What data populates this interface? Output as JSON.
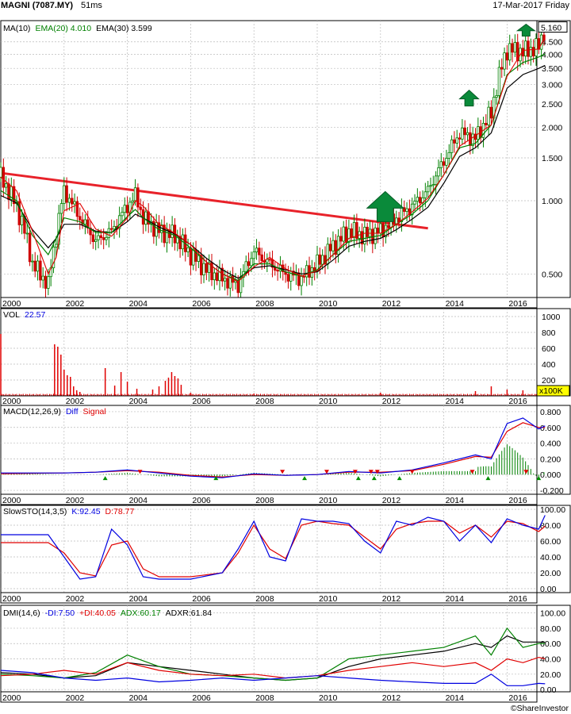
{
  "header": {
    "symbol": "MAGNI (7087.MY)",
    "timing": "51ms",
    "date": "17-Mar-2017 Friday"
  },
  "colors": {
    "ma10": "#e00000",
    "ema20": "#008000",
    "ema30": "#000000",
    "trendline": "#e8222a",
    "candle_up": "#008000",
    "candle_down": "#d00000",
    "arrow": "#0a8a3a",
    "volume": "#e00000",
    "diff": "#0000e0",
    "signal": "#e00000",
    "stoch_k": "#0000e0",
    "stoch_d": "#e00000",
    "minus_di": "#0000e0",
    "plus_di": "#e00000",
    "adx": "#008000",
    "adxr": "#000000"
  },
  "panels": {
    "price": {
      "legend": [
        {
          "label": "MA(10)",
          "value": "",
          "color": "#000"
        },
        {
          "label": "EMA(20)",
          "value": "4.010",
          "color": "#008000"
        },
        {
          "label": "EMA(30)",
          "value": "3.599",
          "color": "#000"
        }
      ],
      "last_price": "5.160",
      "yticks": [
        "4.500",
        "4.000",
        "3.500",
        "3.000",
        "2.500",
        "2.000",
        "1.500",
        "1.000",
        "0.500"
      ]
    },
    "volume": {
      "title": "VOL",
      "value": "22.57",
      "yticks": [
        "1000",
        "800",
        "600",
        "400",
        "200"
      ],
      "unit": "x100K"
    },
    "macd": {
      "title": "MACD(12,26,9)",
      "diff_label": "Diff",
      "signal_label": "Signal",
      "yticks": [
        "0.800",
        "0.600",
        "0.400",
        "0.200",
        "0.000",
        "-0.200"
      ]
    },
    "stoch": {
      "title": "SlowSTO(14,3,5)",
      "k": "K:92.45",
      "d": "D:78.77",
      "yticks": [
        "100.00",
        "80.00",
        "60.00",
        "40.00",
        "20.00",
        "0.00"
      ]
    },
    "dmi": {
      "title": "DMI(14,6)",
      "minus_di": "-DI:7.50",
      "plus_di": "+DI:40.05",
      "adx": "ADX:60.17",
      "adxr": "ADXR:61.84",
      "yticks": [
        "100.00",
        "80.00",
        "60.00",
        "40.00",
        "20.00",
        "0.00"
      ]
    }
  },
  "x_labels": [
    "2000",
    "2002",
    "2004",
    "2006",
    "2008",
    "2010",
    "2012",
    "2014",
    "2016"
  ],
  "footer": "©ShareInvestor",
  "chart_data": [
    {
      "type": "line",
      "title": "MAGNI (7087.MY)",
      "scale": "log",
      "x": [
        2000.0,
        2000.5,
        2001.0,
        2001.5,
        2001.75,
        2002.0,
        2002.5,
        2003.0,
        2003.5,
        2004.0,
        2004.25,
        2004.5,
        2005.0,
        2005.5,
        2006.0,
        2006.5,
        2007.0,
        2007.5,
        2008.0,
        2008.5,
        2009.0,
        2009.5,
        2010.0,
        2010.5,
        2011.0,
        2011.5,
        2012.0,
        2012.5,
        2013.0,
        2013.5,
        2014.0,
        2014.5,
        2015.0,
        2015.5,
        2016.0,
        2016.5,
        2017.0,
        2017.2
      ],
      "series": [
        {
          "name": "Close",
          "values": [
            1.25,
            0.95,
            0.55,
            0.45,
            0.72,
            1.1,
            0.85,
            0.68,
            0.75,
            0.95,
            1.05,
            0.85,
            0.75,
            0.72,
            0.6,
            0.52,
            0.48,
            0.45,
            0.62,
            0.55,
            0.5,
            0.48,
            0.55,
            0.65,
            0.75,
            0.72,
            0.75,
            0.85,
            0.95,
            1.1,
            1.45,
            1.9,
            1.8,
            2.3,
            4.2,
            4.1,
            4.3,
            5.16
          ]
        },
        {
          "name": "EMA(20)",
          "values": [
            1.1,
            1.0,
            0.72,
            0.6,
            0.7,
            0.85,
            0.82,
            0.74,
            0.74,
            0.86,
            0.92,
            0.85,
            0.76,
            0.72,
            0.64,
            0.56,
            0.5,
            0.47,
            0.55,
            0.55,
            0.51,
            0.49,
            0.52,
            0.6,
            0.68,
            0.7,
            0.72,
            0.8,
            0.88,
            1.0,
            1.28,
            1.65,
            1.72,
            2.05,
            3.3,
            3.7,
            3.9,
            4.01
          ]
        },
        {
          "name": "EMA(30)",
          "values": [
            1.05,
            0.98,
            0.76,
            0.64,
            0.7,
            0.8,
            0.8,
            0.75,
            0.74,
            0.82,
            0.88,
            0.85,
            0.78,
            0.73,
            0.66,
            0.58,
            0.52,
            0.48,
            0.53,
            0.54,
            0.52,
            0.5,
            0.51,
            0.57,
            0.65,
            0.68,
            0.7,
            0.76,
            0.84,
            0.94,
            1.18,
            1.52,
            1.65,
            1.9,
            2.9,
            3.3,
            3.5,
            3.6
          ]
        }
      ],
      "trendline": {
        "x": [
          2000.0,
          2013.5
        ],
        "y": [
          1.3,
          0.77
        ]
      },
      "ylim": [
        0.4,
        5.5
      ]
    },
    {
      "type": "bar",
      "title": "VOL",
      "x": [
        2000.0,
        2001.7,
        2001.8,
        2001.9,
        2002.0,
        2002.1,
        2002.2,
        2002.3,
        2002.4,
        2002.5,
        2003.3,
        2003.6,
        2003.8,
        2004.0,
        2004.3,
        2004.8,
        2005.0,
        2005.2,
        2005.3,
        2005.4,
        2005.5,
        2005.6,
        2005.7,
        2006.0,
        2008.0,
        2012.0,
        2015.0,
        2015.5,
        2016.0,
        2016.5,
        2017.0
      ],
      "values": [
        780,
        650,
        620,
        520,
        330,
        260,
        240,
        120,
        70,
        50,
        350,
        130,
        300,
        180,
        90,
        80,
        120,
        190,
        230,
        300,
        250,
        220,
        140,
        40,
        30,
        40,
        60,
        120,
        80,
        70,
        50
      ],
      "ylim": [
        0,
        1100
      ],
      "unit": "x100K"
    },
    {
      "type": "line",
      "title": "MACD(12,26,9)",
      "x": [
        2000,
        2002,
        2003,
        2004,
        2005,
        2006,
        2007,
        2008,
        2009,
        2010,
        2011,
        2012,
        2013,
        2014,
        2015,
        2015.5,
        2016,
        2016.5,
        2017,
        2017.2
      ],
      "series": [
        {
          "name": "Diff",
          "values": [
            0.02,
            0.02,
            0.03,
            0.06,
            0.02,
            -0.02,
            -0.04,
            0.01,
            -0.01,
            0.0,
            0.04,
            0.02,
            0.06,
            0.15,
            0.25,
            0.2,
            0.65,
            0.72,
            0.58,
            0.62
          ]
        },
        {
          "name": "Signal",
          "values": [
            0.01,
            0.02,
            0.03,
            0.05,
            0.03,
            -0.01,
            -0.03,
            0.0,
            -0.01,
            0.0,
            0.03,
            0.03,
            0.05,
            0.13,
            0.23,
            0.22,
            0.55,
            0.66,
            0.6,
            0.6
          ]
        }
      ],
      "ylim": [
        -0.25,
        0.88
      ]
    },
    {
      "type": "line",
      "title": "SlowSTO(14,3,5)",
      "x": [
        2000,
        2001.5,
        2002.0,
        2002.5,
        2003.0,
        2003.5,
        2004.0,
        2004.5,
        2005.0,
        2006.0,
        2007.0,
        2007.5,
        2008.0,
        2008.5,
        2009.0,
        2009.5,
        2010.0,
        2010.5,
        2011.0,
        2011.5,
        2012.0,
        2012.5,
        2013.0,
        2013.5,
        2014.0,
        2014.5,
        2015.0,
        2015.5,
        2016.0,
        2016.5,
        2017.0,
        2017.2
      ],
      "series": [
        {
          "name": "K",
          "values": [
            68,
            68,
            40,
            12,
            15,
            75,
            55,
            15,
            12,
            12,
            20,
            50,
            85,
            40,
            35,
            88,
            85,
            85,
            82,
            60,
            45,
            85,
            80,
            90,
            85,
            60,
            80,
            58,
            88,
            80,
            75,
            92.45
          ]
        },
        {
          "name": "D",
          "values": [
            58,
            58,
            45,
            20,
            16,
            55,
            60,
            25,
            15,
            15,
            20,
            45,
            80,
            50,
            38,
            80,
            85,
            82,
            80,
            65,
            50,
            75,
            82,
            85,
            85,
            70,
            80,
            65,
            85,
            82,
            72,
            78.77
          ]
        }
      ],
      "ylim": [
        -5,
        105
      ]
    },
    {
      "type": "line",
      "title": "DMI(14,6)",
      "x": [
        2000,
        2001,
        2002,
        2003,
        2004,
        2005,
        2006,
        2007,
        2008,
        2009,
        2010,
        2011,
        2012,
        2013,
        2014,
        2015,
        2015.5,
        2016,
        2016.5,
        2017,
        2017.2
      ],
      "series": [
        {
          "name": "-DI",
          "values": [
            25,
            22,
            15,
            12,
            15,
            10,
            12,
            15,
            12,
            15,
            18,
            15,
            12,
            10,
            8,
            8,
            20,
            5,
            5,
            8,
            7.5
          ]
        },
        {
          "name": "+DI",
          "values": [
            18,
            20,
            25,
            20,
            35,
            25,
            20,
            18,
            20,
            15,
            18,
            25,
            30,
            35,
            30,
            35,
            25,
            40,
            35,
            42,
            40.05
          ]
        },
        {
          "name": "ADX",
          "values": [
            20,
            18,
            15,
            22,
            45,
            30,
            20,
            18,
            15,
            12,
            15,
            40,
            45,
            50,
            55,
            70,
            45,
            80,
            55,
            60,
            60.17
          ]
        },
        {
          "name": "ADXR",
          "values": [
            22,
            20,
            15,
            18,
            35,
            30,
            25,
            20,
            15,
            12,
            15,
            30,
            40,
            45,
            50,
            60,
            55,
            70,
            62,
            62,
            61.84
          ]
        }
      ],
      "ylim": [
        -3,
        110
      ]
    }
  ]
}
